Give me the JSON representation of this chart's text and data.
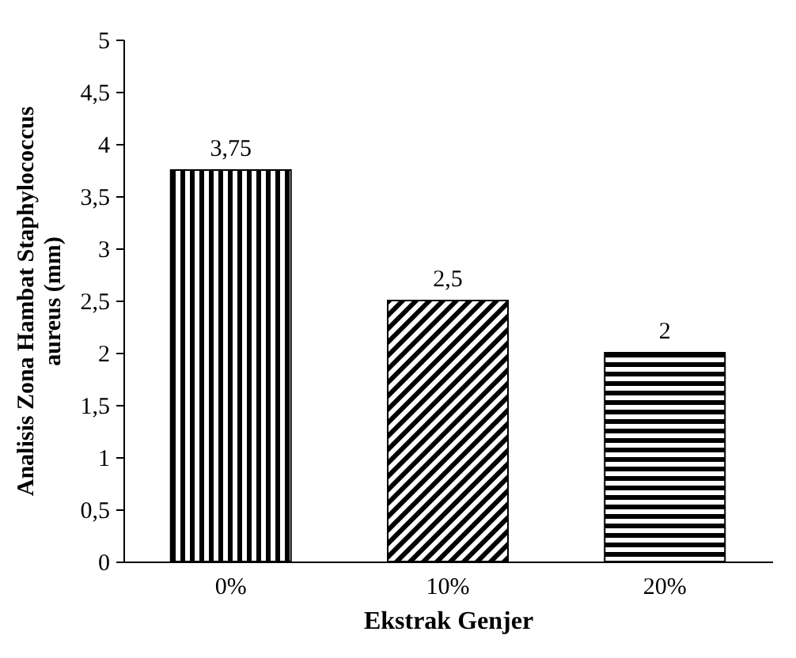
{
  "chart_data": {
    "type": "bar",
    "xlabel": "Ekstrak Genjer",
    "ylabel": "Analisis Zona Hambat Staphylococcus aureus (mm)",
    "categories": [
      "0%",
      "10%",
      "20%"
    ],
    "values": [
      3.75,
      2.5,
      2
    ],
    "value_labels": [
      "3,75",
      "2,5",
      "2"
    ],
    "color": "#000000",
    "ylim": [
      0,
      5
    ],
    "yticks": [
      0,
      {
        "value": 0.5,
        "label": "0,5"
      },
      1,
      {
        "value": 1.5,
        "label": "1,5"
      },
      2,
      {
        "value": 2.5,
        "label": "2,5"
      },
      3,
      {
        "value": 3.5,
        "label": "3,5"
      },
      4,
      {
        "value": 4.5,
        "label": "4,5"
      },
      5
    ],
    "grid": false
  }
}
